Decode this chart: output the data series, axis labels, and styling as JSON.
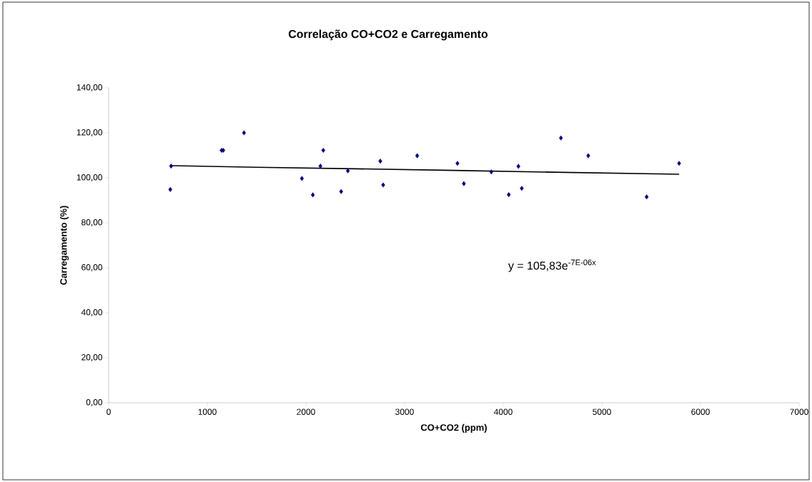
{
  "chart_data": {
    "type": "scatter",
    "title": "Correlação CO+CO2 e  Carregamento",
    "xlabel": "CO+CO2 (ppm)",
    "ylabel": "Carregamento (%)",
    "annotations": [
      "y = 105,83e$^{-7E-06x}$"
    ],
    "series": [
      {
        "color": "#000080",
        "marker": "diamond",
        "x": [
          625,
          633,
          1145,
          1162,
          1372,
          1959,
          2070,
          2147,
          2176,
          2357,
          2425,
          2754,
          2783,
          3128,
          3536,
          3601,
          3879,
          4056,
          4154,
          4188,
          4585,
          4862,
          5454,
          5783
        ],
        "values": [
          94.8,
          105.2,
          112.2,
          112.2,
          120.0,
          99.7,
          92.4,
          105.2,
          112.2,
          93.9,
          103.1,
          107.4,
          96.8,
          109.8,
          106.4,
          97.4,
          102.6,
          92.5,
          105.1,
          95.3,
          117.7,
          109.8,
          91.5,
          106.4
        ]
      },
      {
        "type": "line",
        "color": "#000000",
        "marker": "none",
        "line_style": "solid",
        "x": [
          625,
          1500,
          2500,
          3500,
          4500,
          5783
        ],
        "values": [
          105.4,
          104.7,
          104.0,
          103.3,
          102.5,
          101.6
        ]
      }
    ],
    "xlim": [
      0,
      7000
    ],
    "ylim": [
      0,
      140
    ],
    "xticks": [
      0,
      1000,
      2000,
      3000,
      4000,
      5000,
      6000,
      7000
    ],
    "yticks": [
      {
        "value": 0,
        "label": "0,00"
      },
      {
        "value": 20,
        "label": "20,00"
      },
      {
        "value": 40,
        "label": "40,00"
      },
      {
        "value": 60,
        "label": "60,00"
      },
      {
        "value": 80,
        "label": "80,00"
      },
      {
        "value": 100,
        "label": "100,00"
      },
      {
        "value": 120,
        "label": "120,00"
      },
      {
        "value": 140,
        "label": "140,00"
      }
    ],
    "grid": false
  }
}
